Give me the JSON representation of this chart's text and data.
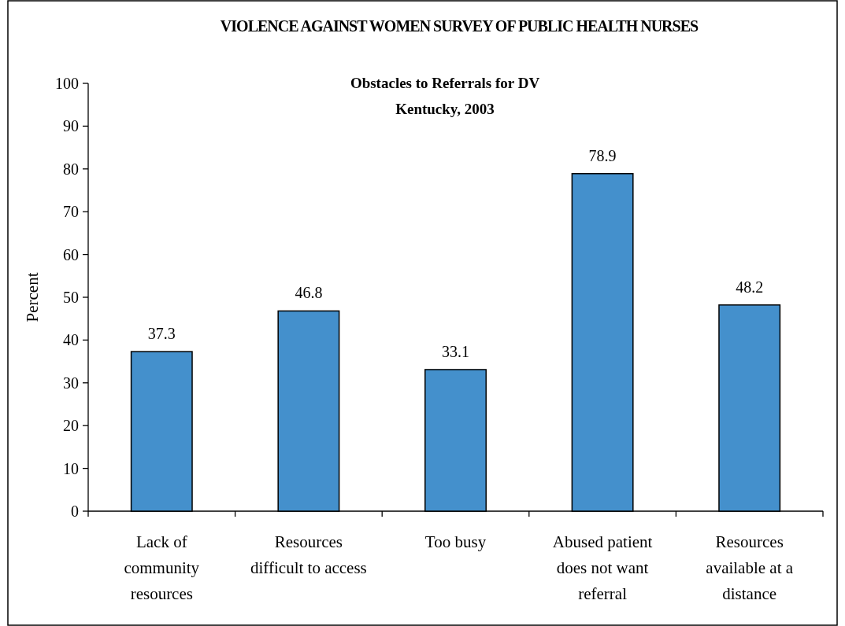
{
  "chart_data": {
    "type": "bar",
    "title": "VIOLENCE AGAINST WOMEN SURVEY OF PUBLIC HEALTH NURSES",
    "subtitle": "Obstacles to Referrals for DV\nKentucky, 2003",
    "ylabel": "Percent",
    "categories": [
      "Lack of\ncommunity\nresources",
      "Resources\ndifficult to access",
      "Too busy",
      "Abused patient\ndoes not want\nreferral",
      "Resources\navailable at a\ndistance"
    ],
    "values": [
      37.3,
      46.8,
      33.1,
      78.9,
      48.2
    ],
    "color": "#4490cc",
    "data_labels": true,
    "ylim": [
      0,
      100
    ],
    "yticks": [
      0,
      10,
      20,
      30,
      40,
      50,
      60,
      70,
      80,
      90,
      100
    ],
    "grid": false
  }
}
